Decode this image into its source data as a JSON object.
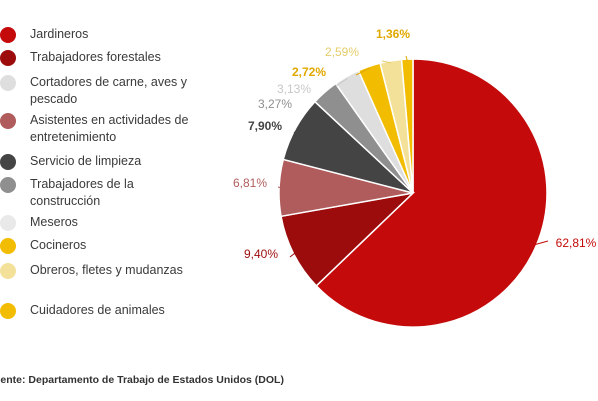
{
  "chart_data": {
    "type": "pie",
    "slices": [
      {
        "label": "Jardineros",
        "value": 62.81,
        "value_label": "62,81%",
        "color": "#c40a0a"
      },
      {
        "label": "Trabajadores forestales",
        "value": 9.4,
        "value_label": "9,40%",
        "color": "#9c0c0c"
      },
      {
        "label": "Cortadores de carne, aves y pescado",
        "value": 3.13,
        "value_label": "3,13%",
        "color": "#dedede"
      },
      {
        "label": "Asistentes en actividades de entretenimiento",
        "value": 6.81,
        "value_label": "6,81%",
        "color": "#b05c5c"
      },
      {
        "label": "Servicio de limpieza",
        "value": 7.9,
        "value_label": "7,90%",
        "color": "#444444"
      },
      {
        "label": "Trabajadores de la construcción",
        "value": 3.27,
        "value_label": "3,27%",
        "color": "#8f8f8f"
      },
      {
        "label": "Meseros",
        "value": null,
        "value_label": "",
        "color": "#e9e9e9"
      },
      {
        "label": "Cocineros",
        "value": 2.72,
        "value_label": "2,72%",
        "color": "#f2bd00"
      },
      {
        "label": "Obreros, fletes y mudanzas",
        "value": 2.59,
        "value_label": "2,59%",
        "color": "#f3e19a"
      },
      {
        "label": "Cuidadores de animales",
        "value": 1.36,
        "value_label": "1,36%",
        "color": "#f2bd00"
      }
    ],
    "pie_order": [
      "Jardineros",
      "Trabajadores forestales",
      "Asistentes en actividades de entretenimiento",
      "Servicio de limpieza",
      "Trabajadores de la construcción",
      "Cortadores de carne, aves y pescado",
      "Cocineros",
      "Obreros, fletes y mudanzas",
      "Cuidadores de animales"
    ]
  },
  "source": "uente: Departamento de Trabajo de Estados Unidos (DOL)"
}
